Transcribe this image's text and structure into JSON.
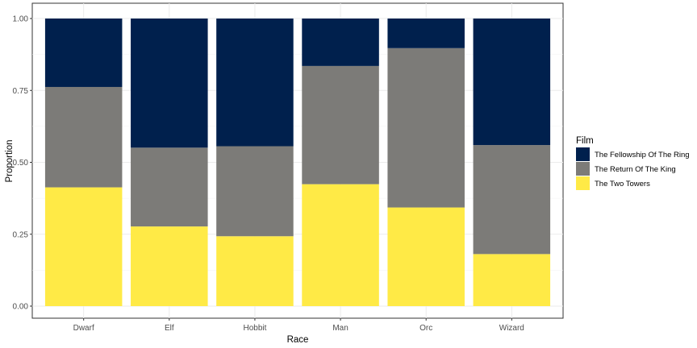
{
  "chart_data": {
    "type": "bar",
    "stacked": true,
    "xlabel": "Race",
    "ylabel": "Proportion",
    "ylim": [
      0,
      1
    ],
    "yticks": [
      0.0,
      0.25,
      0.5,
      0.75,
      1.0
    ],
    "ytick_labels": [
      "0.00",
      "0.25",
      "0.50",
      "0.75",
      "1.00"
    ],
    "categories": [
      "Dwarf",
      "Elf",
      "Hobbit",
      "Man",
      "Orc",
      "Wizard"
    ],
    "series": [
      {
        "name": "The Two Towers",
        "color": "#FFEA46",
        "values": [
          0.413,
          0.277,
          0.243,
          0.424,
          0.343,
          0.181
        ]
      },
      {
        "name": "The Return Of The King",
        "color": "#7C7B78",
        "values": [
          0.349,
          0.274,
          0.313,
          0.411,
          0.554,
          0.379
        ]
      },
      {
        "name": "The Fellowship Of The Ring",
        "color": "#00204D",
        "values": [
          0.238,
          0.449,
          0.444,
          0.165,
          0.103,
          0.44
        ]
      }
    ],
    "legend": {
      "title": "Film",
      "position": "right",
      "order": [
        "The Fellowship Of The Ring",
        "The Return Of The King",
        "The Two Towers"
      ]
    },
    "grid": true
  }
}
